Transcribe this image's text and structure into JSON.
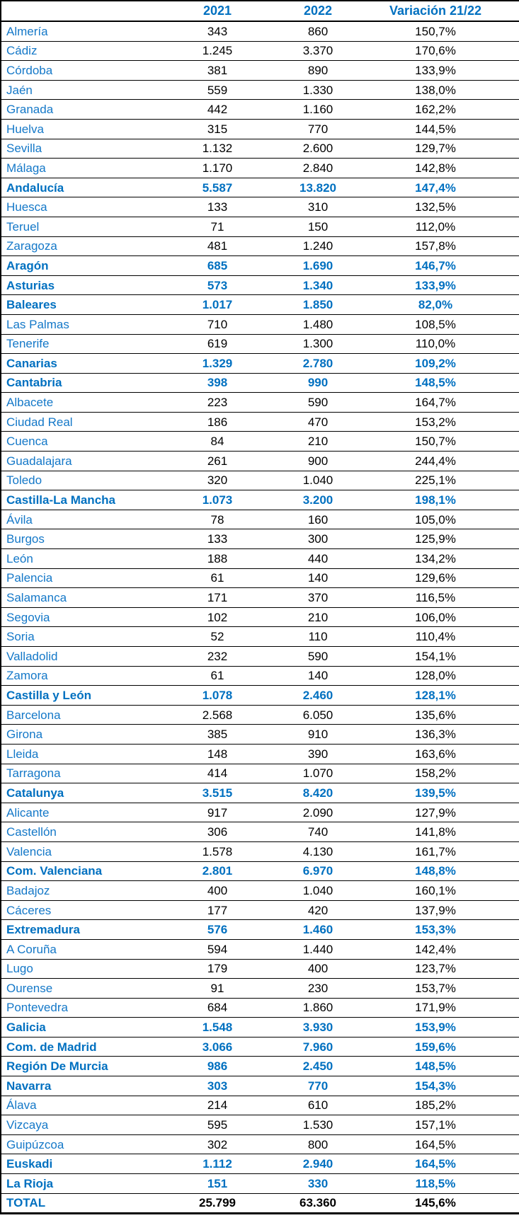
{
  "colors": {
    "header_text": "#0070c0",
    "region_text": "#0070c0",
    "province_text": "#1478c8",
    "value_text": "#000000",
    "border": "#000000",
    "background": "#ffffff"
  },
  "chart_data": {
    "type": "table",
    "title": "",
    "columns": [
      "",
      "2021",
      "2022",
      "Variación 21/22"
    ],
    "legend_position": "none",
    "grid": "horizontal-lines",
    "rows": [
      {
        "name": "Almería",
        "y2021": "343",
        "y2022": "860",
        "variation": "150,7%",
        "style": "province"
      },
      {
        "name": "Cádiz",
        "y2021": "1.245",
        "y2022": "3.370",
        "variation": "170,6%",
        "style": "province"
      },
      {
        "name": "Córdoba",
        "y2021": "381",
        "y2022": "890",
        "variation": "133,9%",
        "style": "province"
      },
      {
        "name": "Jaén",
        "y2021": "559",
        "y2022": "1.330",
        "variation": "138,0%",
        "style": "province"
      },
      {
        "name": "Granada",
        "y2021": "442",
        "y2022": "1.160",
        "variation": "162,2%",
        "style": "province"
      },
      {
        "name": "Huelva",
        "y2021": "315",
        "y2022": "770",
        "variation": "144,5%",
        "style": "province"
      },
      {
        "name": "Sevilla",
        "y2021": "1.132",
        "y2022": "2.600",
        "variation": "129,7%",
        "style": "province"
      },
      {
        "name": "Málaga",
        "y2021": "1.170",
        "y2022": "2.840",
        "variation": "142,8%",
        "style": "province"
      },
      {
        "name": "Andalucía",
        "y2021": "5.587",
        "y2022": "13.820",
        "variation": "147,4%",
        "style": "region"
      },
      {
        "name": "Huesca",
        "y2021": "133",
        "y2022": "310",
        "variation": "132,5%",
        "style": "province"
      },
      {
        "name": "Teruel",
        "y2021": "71",
        "y2022": "150",
        "variation": "112,0%",
        "style": "province"
      },
      {
        "name": "Zaragoza",
        "y2021": "481",
        "y2022": "1.240",
        "variation": "157,8%",
        "style": "province"
      },
      {
        "name": "Aragón",
        "y2021": "685",
        "y2022": "1.690",
        "variation": "146,7%",
        "style": "region"
      },
      {
        "name": "Asturias",
        "y2021": "573",
        "y2022": "1.340",
        "variation": "133,9%",
        "style": "region"
      },
      {
        "name": "Baleares",
        "y2021": "1.017",
        "y2022": "1.850",
        "variation": "82,0%",
        "style": "region"
      },
      {
        "name": "Las Palmas",
        "y2021": "710",
        "y2022": "1.480",
        "variation": "108,5%",
        "style": "province"
      },
      {
        "name": "Tenerife",
        "y2021": "619",
        "y2022": "1.300",
        "variation": "110,0%",
        "style": "province"
      },
      {
        "name": "Canarias",
        "y2021": "1.329",
        "y2022": "2.780",
        "variation": "109,2%",
        "style": "region"
      },
      {
        "name": "Cantabria",
        "y2021": "398",
        "y2022": "990",
        "variation": "148,5%",
        "style": "region"
      },
      {
        "name": "Albacete",
        "y2021": "223",
        "y2022": "590",
        "variation": "164,7%",
        "style": "province"
      },
      {
        "name": "Ciudad Real",
        "y2021": "186",
        "y2022": "470",
        "variation": "153,2%",
        "style": "province"
      },
      {
        "name": "Cuenca",
        "y2021": "84",
        "y2022": "210",
        "variation": "150,7%",
        "style": "province"
      },
      {
        "name": "Guadalajara",
        "y2021": "261",
        "y2022": "900",
        "variation": "244,4%",
        "style": "province"
      },
      {
        "name": "Toledo",
        "y2021": "320",
        "y2022": "1.040",
        "variation": "225,1%",
        "style": "province"
      },
      {
        "name": "Castilla-La Mancha",
        "y2021": "1.073",
        "y2022": "3.200",
        "variation": "198,1%",
        "style": "region"
      },
      {
        "name": "Ávila",
        "y2021": "78",
        "y2022": "160",
        "variation": "105,0%",
        "style": "province"
      },
      {
        "name": "Burgos",
        "y2021": "133",
        "y2022": "300",
        "variation": "125,9%",
        "style": "province"
      },
      {
        "name": "León",
        "y2021": "188",
        "y2022": "440",
        "variation": "134,2%",
        "style": "province"
      },
      {
        "name": "Palencia",
        "y2021": "61",
        "y2022": "140",
        "variation": "129,6%",
        "style": "province"
      },
      {
        "name": "Salamanca",
        "y2021": "171",
        "y2022": "370",
        "variation": "116,5%",
        "style": "province"
      },
      {
        "name": "Segovia",
        "y2021": "102",
        "y2022": "210",
        "variation": "106,0%",
        "style": "province"
      },
      {
        "name": "Soria",
        "y2021": "52",
        "y2022": "110",
        "variation": "110,4%",
        "style": "province"
      },
      {
        "name": "Valladolid",
        "y2021": "232",
        "y2022": "590",
        "variation": "154,1%",
        "style": "province"
      },
      {
        "name": "Zamora",
        "y2021": "61",
        "y2022": "140",
        "variation": "128,0%",
        "style": "province"
      },
      {
        "name": "Castilla y León",
        "y2021": "1.078",
        "y2022": "2.460",
        "variation": "128,1%",
        "style": "region"
      },
      {
        "name": "Barcelona",
        "y2021": "2.568",
        "y2022": "6.050",
        "variation": "135,6%",
        "style": "province"
      },
      {
        "name": "Girona",
        "y2021": "385",
        "y2022": "910",
        "variation": "136,3%",
        "style": "province"
      },
      {
        "name": "Lleida",
        "y2021": "148",
        "y2022": "390",
        "variation": "163,6%",
        "style": "province"
      },
      {
        "name": "Tarragona",
        "y2021": "414",
        "y2022": "1.070",
        "variation": "158,2%",
        "style": "province"
      },
      {
        "name": "Catalunya",
        "y2021": "3.515",
        "y2022": "8.420",
        "variation": "139,5%",
        "style": "region"
      },
      {
        "name": "Alicante",
        "y2021": "917",
        "y2022": "2.090",
        "variation": "127,9%",
        "style": "province"
      },
      {
        "name": "Castellón",
        "y2021": "306",
        "y2022": "740",
        "variation": "141,8%",
        "style": "province"
      },
      {
        "name": "Valencia",
        "y2021": "1.578",
        "y2022": "4.130",
        "variation": "161,7%",
        "style": "province"
      },
      {
        "name": "Com. Valenciana",
        "y2021": "2.801",
        "y2022": "6.970",
        "variation": "148,8%",
        "style": "region"
      },
      {
        "name": "Badajoz",
        "y2021": "400",
        "y2022": "1.040",
        "variation": "160,1%",
        "style": "province"
      },
      {
        "name": "Cáceres",
        "y2021": "177",
        "y2022": "420",
        "variation": "137,9%",
        "style": "province"
      },
      {
        "name": "Extremadura",
        "y2021": "576",
        "y2022": "1.460",
        "variation": "153,3%",
        "style": "region"
      },
      {
        "name": "A Coruña",
        "y2021": "594",
        "y2022": "1.440",
        "variation": "142,4%",
        "style": "province"
      },
      {
        "name": "Lugo",
        "y2021": "179",
        "y2022": "400",
        "variation": "123,7%",
        "style": "province"
      },
      {
        "name": "Ourense",
        "y2021": "91",
        "y2022": "230",
        "variation": "153,7%",
        "style": "province"
      },
      {
        "name": "Pontevedra",
        "y2021": "684",
        "y2022": "1.860",
        "variation": "171,9%",
        "style": "province"
      },
      {
        "name": "Galicia",
        "y2021": "1.548",
        "y2022": "3.930",
        "variation": "153,9%",
        "style": "region"
      },
      {
        "name": "Com. de Madrid",
        "y2021": "3.066",
        "y2022": "7.960",
        "variation": "159,6%",
        "style": "region"
      },
      {
        "name": "Región De Murcia",
        "y2021": "986",
        "y2022": "2.450",
        "variation": "148,5%",
        "style": "region"
      },
      {
        "name": "Navarra",
        "y2021": "303",
        "y2022": "770",
        "variation": "154,3%",
        "style": "region"
      },
      {
        "name": "Álava",
        "y2021": "214",
        "y2022": "610",
        "variation": "185,2%",
        "style": "province"
      },
      {
        "name": "Vizcaya",
        "y2021": "595",
        "y2022": "1.530",
        "variation": "157,1%",
        "style": "province"
      },
      {
        "name": "Guipúzcoa",
        "y2021": "302",
        "y2022": "800",
        "variation": "164,5%",
        "style": "province"
      },
      {
        "name": "Euskadi",
        "y2021": "1.112",
        "y2022": "2.940",
        "variation": "164,5%",
        "style": "region"
      },
      {
        "name": "La Rioja",
        "y2021": "151",
        "y2022": "330",
        "variation": "118,5%",
        "style": "region"
      },
      {
        "name": "TOTAL",
        "y2021": "25.799",
        "y2022": "63.360",
        "variation": "145,6%",
        "style": "total"
      }
    ]
  }
}
